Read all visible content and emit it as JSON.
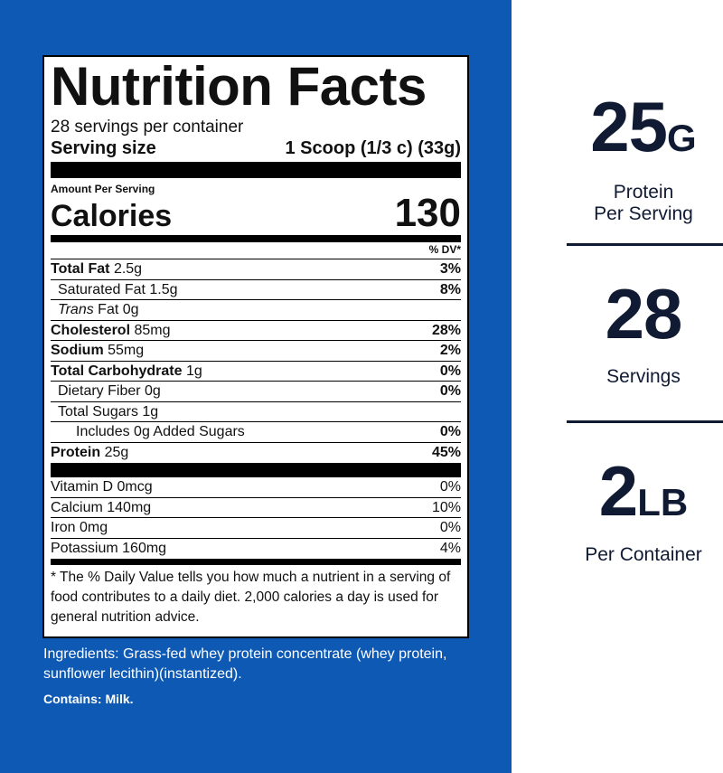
{
  "label": {
    "title": "Nutrition Facts",
    "servings_per_container": "28 servings per container",
    "serving_size_label": "Serving size",
    "serving_size_value": "1 Scoop (1/3 c) (33g)",
    "amount_per_serving": "Amount Per Serving",
    "calories_label": "Calories",
    "calories_value": "130",
    "dv_header": "% DV*",
    "nutrients": [
      {
        "name": "Total Fat",
        "amount": "2.5g",
        "dv": "3%"
      },
      {
        "name": "Saturated Fat",
        "amount": "1.5g",
        "dv": "8%"
      },
      {
        "name": "Trans",
        "suffix": "Fat",
        "amount": "0g",
        "dv": ""
      },
      {
        "name": "Cholesterol",
        "amount": "85mg",
        "dv": "28%"
      },
      {
        "name": "Sodium",
        "amount": "55mg",
        "dv": "2%"
      },
      {
        "name": "Total Carbohydrate",
        "amount": "1g",
        "dv": "0%"
      },
      {
        "name": "Dietary Fiber",
        "amount": "0g",
        "dv": "0%"
      },
      {
        "name": "Total Sugars",
        "amount": "1g",
        "dv": ""
      },
      {
        "name": "Includes 0g Added Sugars",
        "amount": "",
        "dv": "0%"
      },
      {
        "name": "Protein",
        "amount": "25g",
        "dv": "45%"
      }
    ],
    "vitamins": [
      {
        "name": "Vitamin D",
        "amount": "0mcg",
        "dv": "0%"
      },
      {
        "name": "Calcium",
        "amount": "140mg",
        "dv": "10%"
      },
      {
        "name": "Iron",
        "amount": "0mg",
        "dv": "0%"
      },
      {
        "name": "Potassium",
        "amount": "160mg",
        "dv": "4%"
      }
    ],
    "footnote": "* The % Daily Value tells you how much a nutrient in a serving of food contributes to a daily diet. 2,000 calories a day is used for general nutrition advice."
  },
  "ingredients": "Ingredients: Grass-fed whey protein concentrate (whey protein, sunflower lecithin)(instantized).",
  "contains": "Contains: Milk.",
  "stats": [
    {
      "value": "25",
      "unit": "G",
      "line1": "Protein",
      "line2": "Per Serving"
    },
    {
      "value": "28",
      "unit": "",
      "line1": "Servings",
      "line2": ""
    },
    {
      "value": "2",
      "unit": "LB",
      "line1": "Per Container",
      "line2": ""
    }
  ],
  "colors": {
    "panel_blue": "#0d59b4",
    "stat_navy": "#101b33"
  }
}
